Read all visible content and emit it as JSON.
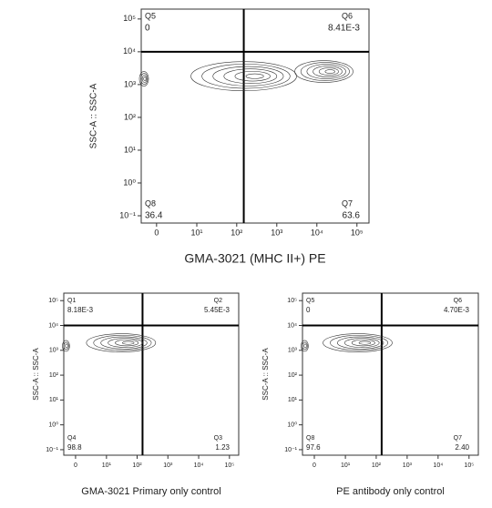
{
  "chart_data": [
    {
      "type": "contour",
      "x_label": "GMA-3021 (MHC II+) PE",
      "y_label": "SSC-A :: SSC-A",
      "xlim": [
        -2,
        200000
      ],
      "ylim": [
        0.06,
        200000
      ],
      "xticks": [
        0,
        {
          "value": 10,
          "label": "10¹"
        },
        {
          "value": 100,
          "label": "10²"
        },
        {
          "value": 1000,
          "label": "10³"
        },
        {
          "value": 10000,
          "label": "10⁴"
        },
        {
          "value": 100000,
          "label": "10⁵"
        }
      ],
      "yticks": [
        {
          "value": 0.1,
          "label": "10⁻¹"
        },
        {
          "value": 1,
          "label": "10⁰"
        },
        {
          "value": 10,
          "label": "10¹"
        },
        {
          "value": 100,
          "label": "10²"
        },
        {
          "value": 1000,
          "label": "10³"
        },
        {
          "value": 10000,
          "label": "10⁴"
        },
        {
          "value": 100000,
          "label": "10⁵"
        }
      ],
      "gate": {
        "x": 150,
        "y": 10000
      },
      "quadrants": [
        {
          "name": "Q5",
          "value": 0
        },
        {
          "name": "Q6",
          "value": 0.00841,
          "label": "8.41E-3"
        },
        {
          "name": "Q8",
          "value": 36.4
        },
        {
          "name": "Q7",
          "value": 63.6
        }
      ],
      "populations": [
        {
          "x": -2,
          "y": 1500
        },
        {
          "x": 150,
          "y": 1800
        },
        {
          "x": 15000,
          "y": 2500
        }
      ]
    },
    {
      "type": "contour",
      "x_label": "GMA-3021  Primary only control",
      "y_label": "SSC-A :: SSC-A",
      "xlim": [
        -2,
        200000
      ],
      "ylim": [
        0.06,
        200000
      ],
      "xticks": [
        0,
        {
          "value": 10,
          "label": "10¹"
        },
        {
          "value": 100,
          "label": "10²"
        },
        {
          "value": 1000,
          "label": "10³"
        },
        {
          "value": 10000,
          "label": "10⁴"
        },
        {
          "value": 100000,
          "label": "10⁵"
        }
      ],
      "yticks": [
        {
          "value": 0.1,
          "label": "10⁻¹"
        },
        {
          "value": 1,
          "label": "10⁰"
        },
        {
          "value": 10,
          "label": "10¹"
        },
        {
          "value": 100,
          "label": "10²"
        },
        {
          "value": 1000,
          "label": "10³"
        },
        {
          "value": 10000,
          "label": "10⁴"
        },
        {
          "value": 100000,
          "label": "10⁵"
        }
      ],
      "gate": {
        "x": 150,
        "y": 10000
      },
      "quadrants": [
        {
          "name": "Q1",
          "value": 0.00818,
          "label": "8.18E-3"
        },
        {
          "name": "Q2",
          "value": 0.00545,
          "label": "5.45E-3"
        },
        {
          "name": "Q4",
          "value": 98.8
        },
        {
          "name": "Q3",
          "value": 1.23
        }
      ],
      "populations": [
        {
          "x": -2,
          "y": 1500
        },
        {
          "x": 30,
          "y": 2000
        }
      ]
    },
    {
      "type": "contour",
      "x_label": "PE antibody only control",
      "y_label": "SSC-A :: SSC-A",
      "xlim": [
        -2,
        200000
      ],
      "ylim": [
        0.06,
        200000
      ],
      "xticks": [
        0,
        {
          "value": 10,
          "label": "10¹"
        },
        {
          "value": 100,
          "label": "10²"
        },
        {
          "value": 1000,
          "label": "10³"
        },
        {
          "value": 10000,
          "label": "10⁴"
        },
        {
          "value": 100000,
          "label": "10⁵"
        }
      ],
      "yticks": [
        {
          "value": 0.1,
          "label": "10⁻¹"
        },
        {
          "value": 1,
          "label": "10⁰"
        },
        {
          "value": 10,
          "label": "10¹"
        },
        {
          "value": 100,
          "label": "10²"
        },
        {
          "value": 1000,
          "label": "10³"
        },
        {
          "value": 10000,
          "label": "10⁴"
        },
        {
          "value": 100000,
          "label": "10⁵"
        }
      ],
      "gate": {
        "x": 150,
        "y": 10000
      },
      "quadrants": [
        {
          "name": "Q5",
          "value": 0
        },
        {
          "name": "Q6",
          "value": 0.0047,
          "label": "4.70E-3"
        },
        {
          "name": "Q8",
          "value": 97.6
        },
        {
          "name": "Q7",
          "value": 2.4,
          "label": "2.40"
        }
      ],
      "populations": [
        {
          "x": -2,
          "y": 1500
        },
        {
          "x": 25,
          "y": 2000
        }
      ]
    }
  ]
}
